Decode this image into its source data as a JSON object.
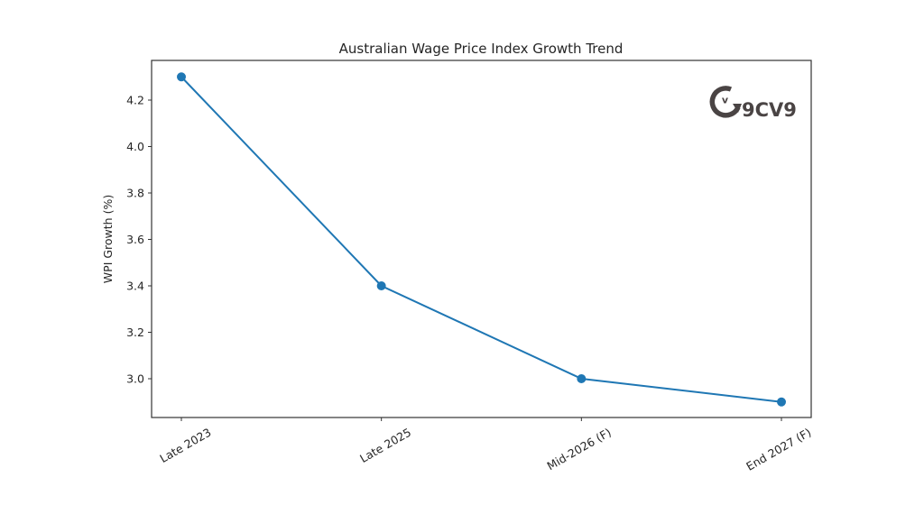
{
  "chart_data": {
    "type": "line",
    "title": "Australian Wage Price Index Growth Trend",
    "xlabel": "",
    "ylabel": "WPI Growth (%)",
    "categories": [
      "Late 2023",
      "Late 2025",
      "Mid-2026 (F)",
      "End 2027 (F)"
    ],
    "series": [
      {
        "name": "WPI Growth (%)",
        "values": [
          4.3,
          3.4,
          3.0,
          2.9
        ],
        "color": "#1f77b4",
        "marker": "circle"
      }
    ],
    "yticks": [
      3.0,
      3.2,
      3.4,
      3.6,
      3.8,
      4.0,
      4.2
    ],
    "ylim": [
      2.83,
      4.37
    ],
    "grid": false,
    "legend": null,
    "xtick_rotation": 30
  },
  "watermark": {
    "text": "9CV9",
    "icon": "9cv9-logo-icon",
    "color": "#4a4444"
  },
  "colors": {
    "line": "#1f77b4",
    "axes": "#333333",
    "background": "#ffffff"
  }
}
